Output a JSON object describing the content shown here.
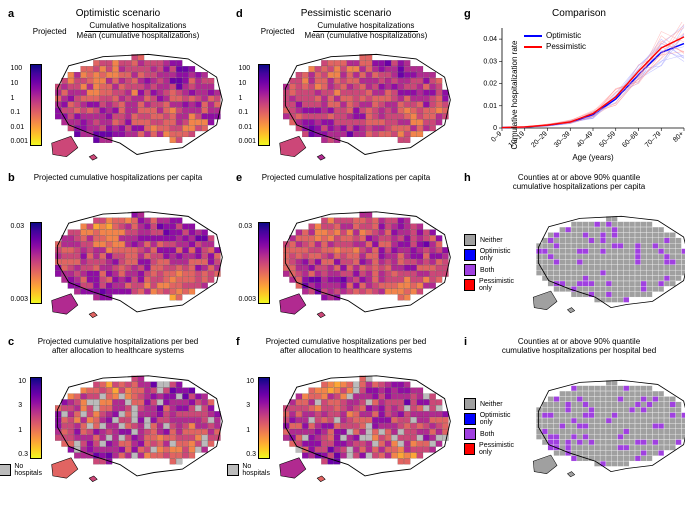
{
  "columns": {
    "left": "Optimistic scenario",
    "middle": "Pessimistic scenario",
    "right": "Comparison"
  },
  "panels": {
    "a": {
      "letter": "a",
      "projected_label": "Projected",
      "frac_num": "Cumulative hospitalizations",
      "frac_den": "Mean (cumulative hospitalizations)"
    },
    "b": {
      "letter": "b",
      "title": "Projected cumulative hospitalizations per capita"
    },
    "c": {
      "letter": "c",
      "title": "Projected cumulative hospitalizations per bed\nafter allocation to healthcare systems"
    },
    "d": {
      "letter": "d",
      "projected_label": "Projected",
      "frac_num": "Cumulative hospitalizations",
      "frac_den": "Mean (cumulative hospitalizations)"
    },
    "e": {
      "letter": "e",
      "title": "Projected cumulative hospitalizations per capita"
    },
    "f": {
      "letter": "f",
      "title": "Projected cumulative hospitalizations per bed\nafter allocation to healthcare systems"
    },
    "g": {
      "letter": "g"
    },
    "h": {
      "letter": "h",
      "title": "Counties at or above 90% quantile\ncumulative hospitalizations per capita"
    },
    "i": {
      "letter": "i",
      "title": "Counties at or above 90% quantile\ncumulative hospitalizations per hospital bed"
    }
  },
  "colorbars": {
    "a": {
      "ticks": [
        "100",
        "10",
        "1",
        "0.1",
        "0.01",
        "0.001"
      ]
    },
    "b": {
      "ticks": [
        "0.03",
        "",
        "",
        "",
        "0.003"
      ]
    },
    "c": {
      "ticks": [
        "10",
        "3",
        "1",
        "0.3"
      ],
      "nohospitals": "No\nhospitals"
    },
    "d": {
      "ticks": [
        "100",
        "10",
        "1",
        "0.1",
        "0.01",
        "0.001"
      ]
    },
    "e": {
      "ticks": [
        "0.03",
        "",
        "",
        "",
        "0.003"
      ]
    },
    "f": {
      "ticks": [
        "10",
        "3",
        "1",
        "0.3"
      ],
      "nohospitals": "No\nhospitals"
    }
  },
  "cat_legend": {
    "items": [
      {
        "label": "Neither",
        "color": "#a0a0a0"
      },
      {
        "label": "Optimistic only",
        "color": "#0000ff"
      },
      {
        "label": "Both",
        "color": "#a040e0"
      },
      {
        "label": "Pessimistic only",
        "color": "#ff0000"
      }
    ]
  },
  "chart": {
    "ylabel": "Cumulative hospitalization rate",
    "xlabel": "Age (years)",
    "x_categories": [
      "0–9",
      "10–19",
      "20–29",
      "30–39",
      "40–49",
      "50–59",
      "60–69",
      "70–79",
      "80+"
    ],
    "y_ticks": [
      "0",
      "0.01",
      "0.02",
      "0.03",
      "0.04"
    ],
    "ylim": [
      0,
      0.045
    ],
    "series": [
      {
        "name": "Optimistic",
        "color": "#0000ff",
        "light": "#9090ff",
        "mean": [
          0.0002,
          0.0004,
          0.0012,
          0.0025,
          0.006,
          0.013,
          0.024,
          0.034,
          0.038
        ],
        "lo": [
          0.0001,
          0.0003,
          0.0009,
          0.002,
          0.005,
          0.011,
          0.021,
          0.03,
          0.032
        ],
        "hi": [
          0.0003,
          0.0006,
          0.0016,
          0.0032,
          0.0075,
          0.0155,
          0.028,
          0.039,
          0.044
        ]
      },
      {
        "name": "Pessimistic",
        "color": "#ff0000",
        "light": "#ff9090",
        "mean": [
          0.0002,
          0.0005,
          0.0013,
          0.0027,
          0.0065,
          0.014,
          0.0255,
          0.036,
          0.041
        ],
        "lo": [
          0.0001,
          0.0003,
          0.001,
          0.0021,
          0.0052,
          0.0115,
          0.0215,
          0.0305,
          0.034
        ],
        "hi": [
          0.0003,
          0.0007,
          0.0018,
          0.0036,
          0.0082,
          0.017,
          0.03,
          0.042,
          0.047
        ]
      }
    ],
    "legend": [
      {
        "label": "Optimistic",
        "color": "#0000ff"
      },
      {
        "label": "Pessimistic",
        "color": "#ff0000"
      }
    ]
  },
  "map_colors": {
    "viridis_gradient": [
      "#0d0887",
      "#41049d",
      "#6a00a8",
      "#8f0da4",
      "#b12a90",
      "#cc4778",
      "#e16462",
      "#f2844b",
      "#fca636",
      "#fcce25",
      "#f0f921"
    ],
    "grey": "#a0a0a0",
    "purple": "#a040e0"
  }
}
